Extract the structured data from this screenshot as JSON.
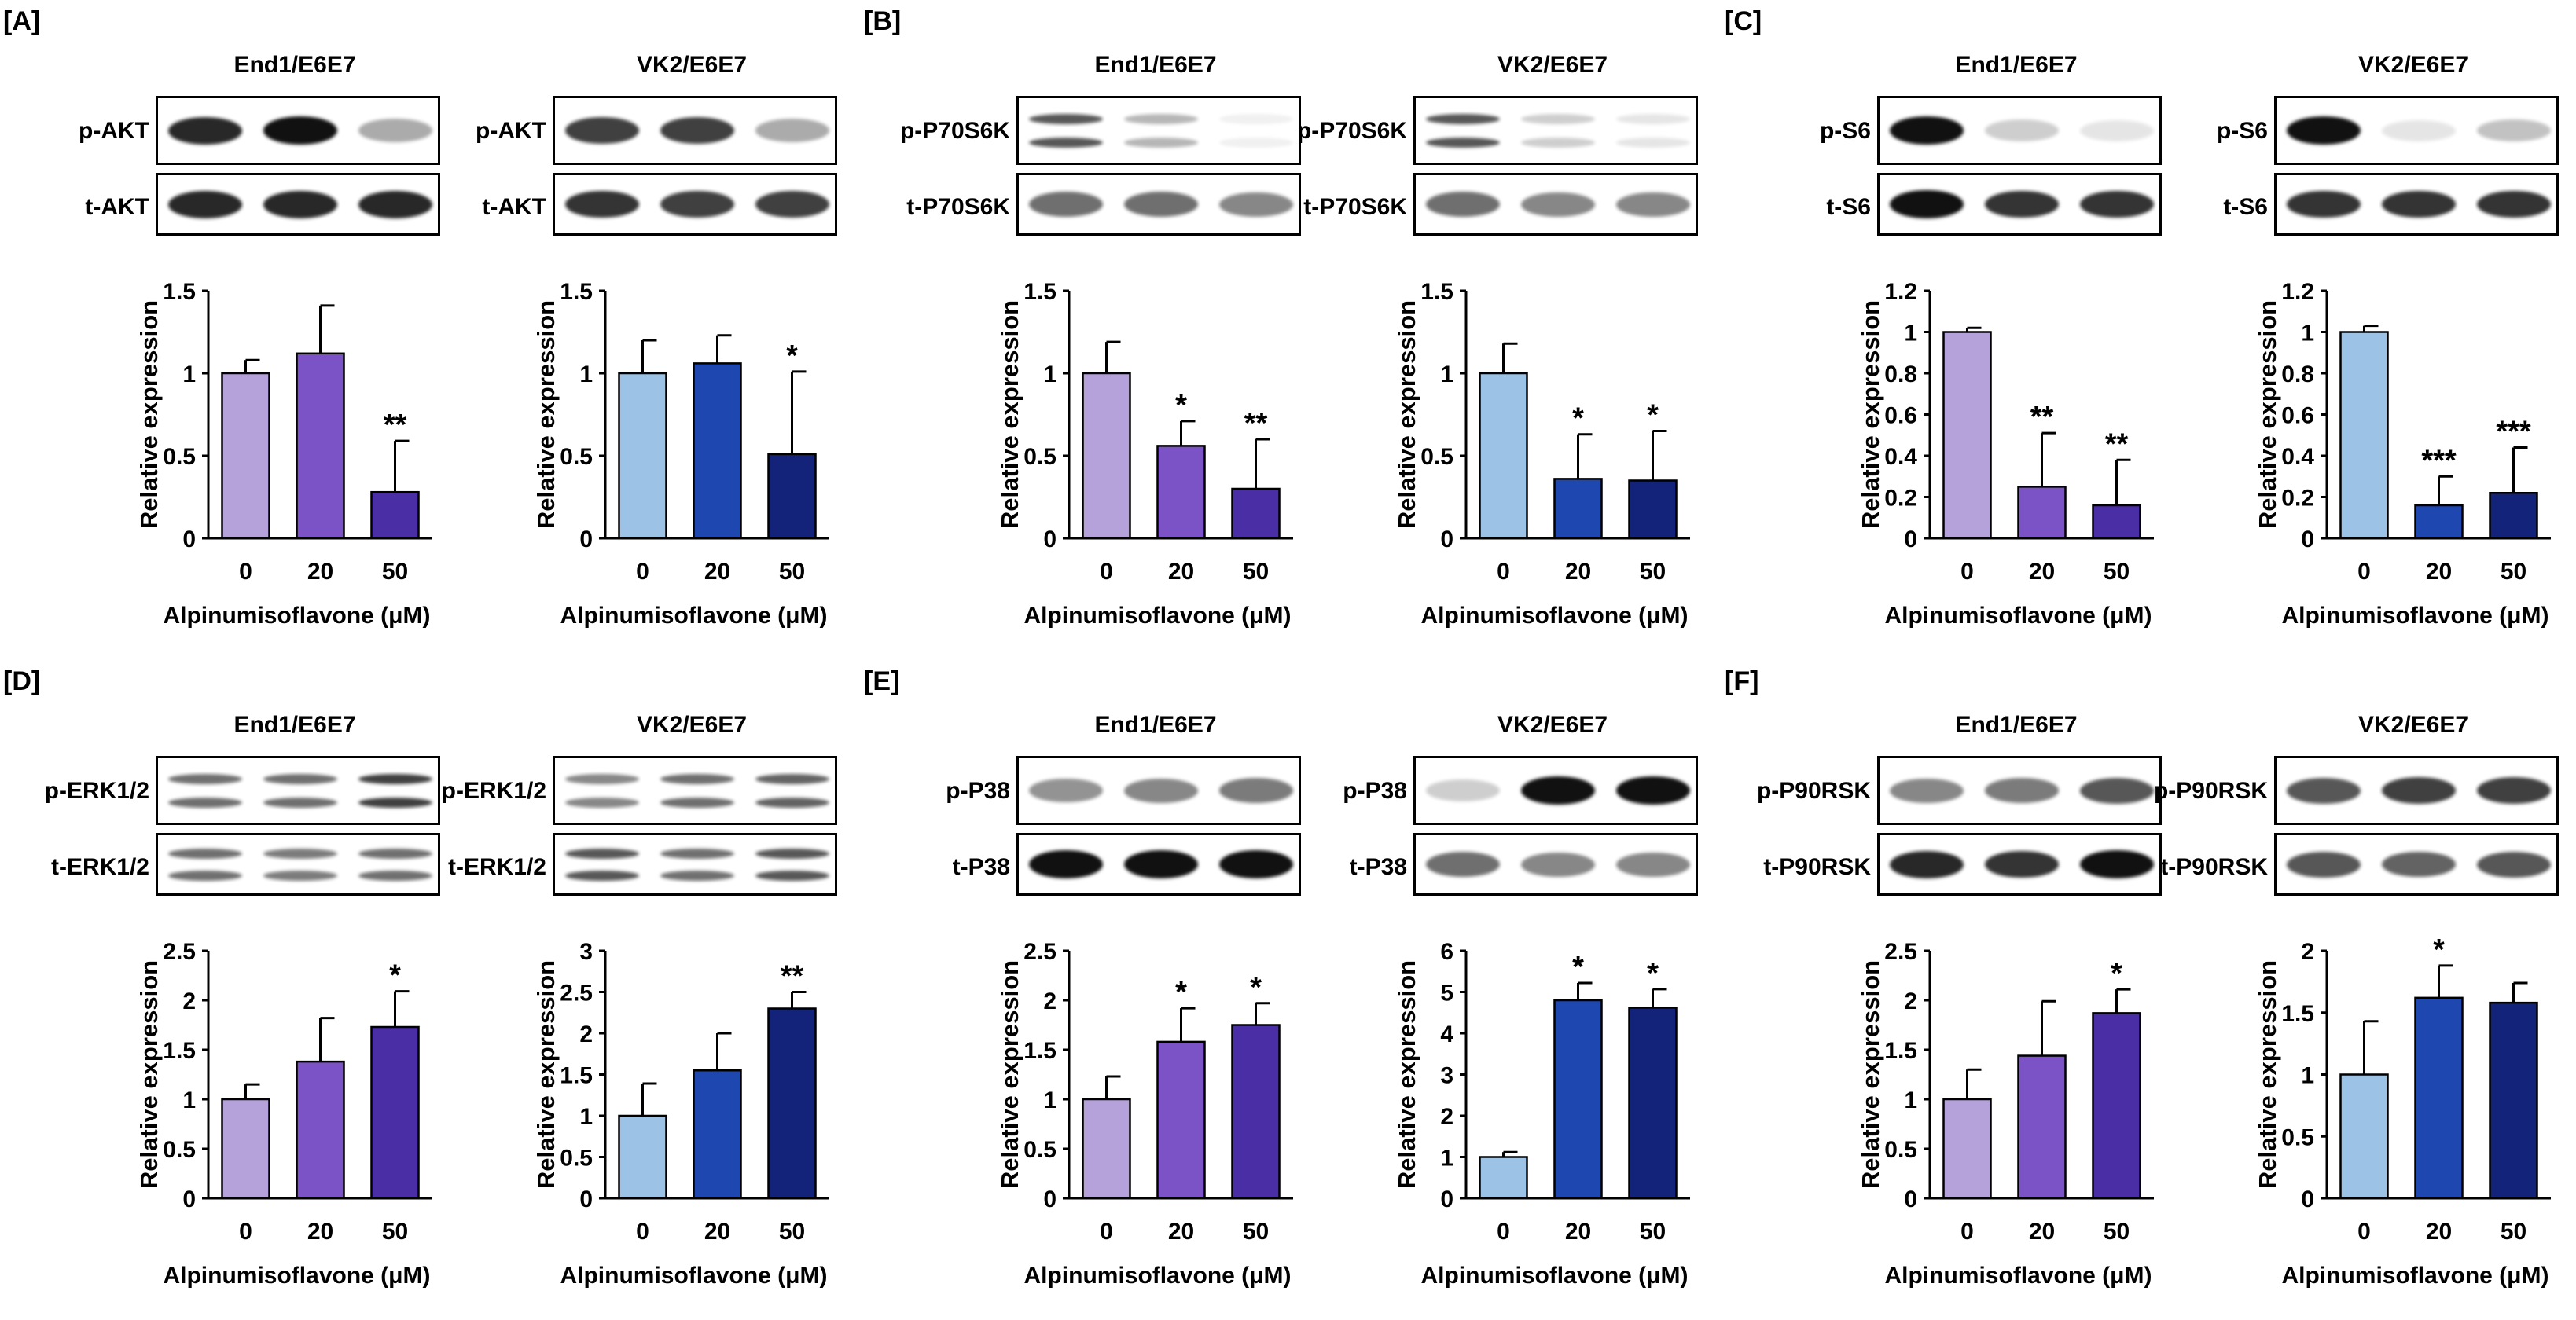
{
  "colors": {
    "end_ctrl": "#b5a2db",
    "end_20": "#7b53c6",
    "end_50": "#4a2ea6",
    "vk_ctrl": "#9cc3e6",
    "vk_20": "#1f47b0",
    "vk_50": "#13237a",
    "axis": "#000000"
  },
  "panels": [
    {
      "label": "[A]",
      "cells": [
        {
          "title": "End1/E6E7",
          "blot_top_label": "p-AKT",
          "blot_bottom_label": "t-AKT"
        },
        {
          "title": "VK2/E6E7",
          "blot_top_label": "p-AKT",
          "blot_bottom_label": "t-AKT"
        }
      ]
    },
    {
      "label": "[B]",
      "cells": [
        {
          "title": "End1/E6E7",
          "blot_top_label": "p-P70S6K",
          "blot_bottom_label": "t-P70S6K"
        },
        {
          "title": "VK2/E6E7",
          "blot_top_label": "p-P70S6K",
          "blot_bottom_label": "t-P70S6K"
        }
      ]
    },
    {
      "label": "[C]",
      "cells": [
        {
          "title": "End1/E6E7",
          "blot_top_label": "p-S6",
          "blot_bottom_label": "t-S6"
        },
        {
          "title": "VK2/E6E7",
          "blot_top_label": "p-S6",
          "blot_bottom_label": "t-S6"
        }
      ]
    },
    {
      "label": "[D]",
      "cells": [
        {
          "title": "End1/E6E7",
          "blot_top_label": "p-ERK1/2",
          "blot_bottom_label": "t-ERK1/2"
        },
        {
          "title": "VK2/E6E7",
          "blot_top_label": "p-ERK1/2",
          "blot_bottom_label": "t-ERK1/2"
        }
      ]
    },
    {
      "label": "[E]",
      "cells": [
        {
          "title": "End1/E6E7",
          "blot_top_label": "p-P38",
          "blot_bottom_label": "t-P38"
        },
        {
          "title": "VK2/E6E7",
          "blot_top_label": "p-P38",
          "blot_bottom_label": "t-P38"
        }
      ]
    },
    {
      "label": "[F]",
      "cells": [
        {
          "title": "End1/E6E7",
          "blot_top_label": "p-P90RSK",
          "blot_bottom_label": "t-P90RSK"
        },
        {
          "title": "VK2/E6E7",
          "blot_top_label": "p-P90RSK",
          "blot_bottom_label": "t-P90RSK"
        }
      ]
    }
  ],
  "chart_data": [
    {
      "panel": "[A]",
      "cell": "End1/E6E7",
      "type": "bar",
      "categories": [
        "0",
        "20",
        "50"
      ],
      "values": [
        1.0,
        1.12,
        0.28
      ],
      "errors": [
        0.08,
        0.29,
        0.31
      ],
      "significance": [
        "",
        "",
        "**"
      ],
      "ylim": [
        0,
        1.5
      ],
      "yticks": [
        "0",
        "0.5",
        "1",
        "1.5"
      ],
      "ylabel": "Relative expression",
      "xlabel": "Alpinumisoflavone (μM)"
    },
    {
      "panel": "[A]",
      "cell": "VK2/E6E7",
      "type": "bar",
      "categories": [
        "0",
        "20",
        "50"
      ],
      "values": [
        1.0,
        1.06,
        0.51
      ],
      "errors": [
        0.2,
        0.17,
        0.5
      ],
      "significance": [
        "",
        "",
        "*"
      ],
      "ylim": [
        0,
        1.5
      ],
      "yticks": [
        "0",
        "0.5",
        "1",
        "1.5"
      ],
      "ylabel": "Relative expression",
      "xlabel": "Alpinumisoflavone (μM)"
    },
    {
      "panel": "[B]",
      "cell": "End1/E6E7",
      "type": "bar",
      "categories": [
        "0",
        "20",
        "50"
      ],
      "values": [
        1.0,
        0.56,
        0.3
      ],
      "errors": [
        0.19,
        0.15,
        0.3
      ],
      "significance": [
        "",
        "*",
        "**"
      ],
      "ylim": [
        0,
        1.5
      ],
      "yticks": [
        "0",
        "0.5",
        "1",
        "1.5"
      ],
      "ylabel": "Relative expression",
      "xlabel": "Alpinumisoflavone (μM)"
    },
    {
      "panel": "[B]",
      "cell": "VK2/E6E7",
      "type": "bar",
      "categories": [
        "0",
        "20",
        "50"
      ],
      "values": [
        1.0,
        0.36,
        0.35
      ],
      "errors": [
        0.18,
        0.27,
        0.3
      ],
      "significance": [
        "",
        "*",
        "*"
      ],
      "ylim": [
        0,
        1.5
      ],
      "yticks": [
        "0",
        "0.5",
        "1",
        "1.5"
      ],
      "ylabel": "Relative expression",
      "xlabel": "Alpinumisoflavone (μM)"
    },
    {
      "panel": "[C]",
      "cell": "End1/E6E7",
      "type": "bar",
      "categories": [
        "0",
        "20",
        "50"
      ],
      "values": [
        1.0,
        0.25,
        0.16
      ],
      "errors": [
        0.02,
        0.26,
        0.22
      ],
      "significance": [
        "",
        "**",
        "**"
      ],
      "ylim": [
        0,
        1.2
      ],
      "yticks": [
        "0",
        "0.2",
        "0.4",
        "0.6",
        "0.8",
        "1",
        "1.2"
      ],
      "ylabel": "Relative expression",
      "xlabel": "Alpinumisoflavone (μM)"
    },
    {
      "panel": "[C]",
      "cell": "VK2/E6E7",
      "type": "bar",
      "categories": [
        "0",
        "20",
        "50"
      ],
      "values": [
        1.0,
        0.16,
        0.22
      ],
      "errors": [
        0.03,
        0.14,
        0.22
      ],
      "significance": [
        "",
        "***",
        "***"
      ],
      "ylim": [
        0,
        1.2
      ],
      "yticks": [
        "0",
        "0.2",
        "0.4",
        "0.6",
        "0.8",
        "1",
        "1.2"
      ],
      "ylabel": "Relative expression",
      "xlabel": "Alpinumisoflavone (μM)"
    },
    {
      "panel": "[D]",
      "cell": "End1/E6E7",
      "type": "bar",
      "categories": [
        "0",
        "20",
        "50"
      ],
      "values": [
        1.0,
        1.38,
        1.73
      ],
      "errors": [
        0.15,
        0.44,
        0.36
      ],
      "significance": [
        "",
        "",
        "*"
      ],
      "ylim": [
        0,
        2.5
      ],
      "yticks": [
        "0",
        "0.5",
        "1",
        "1.5",
        "2",
        "2.5"
      ],
      "ylabel": "Relative expression",
      "xlabel": "Alpinumisoflavone (μM)"
    },
    {
      "panel": "[D]",
      "cell": "VK2/E6E7",
      "type": "bar",
      "categories": [
        "0",
        "20",
        "50"
      ],
      "values": [
        1.0,
        1.55,
        2.3
      ],
      "errors": [
        0.39,
        0.45,
        0.2
      ],
      "significance": [
        "",
        "",
        "**"
      ],
      "ylim": [
        0,
        3
      ],
      "yticks": [
        "0",
        "0.5",
        "1",
        "1.5",
        "2",
        "2.5",
        "3"
      ],
      "ylabel": "Relative expression",
      "xlabel": "Alpinumisoflavone (μM)"
    },
    {
      "panel": "[E]",
      "cell": "End1/E6E7",
      "type": "bar",
      "categories": [
        "0",
        "20",
        "50"
      ],
      "values": [
        1.0,
        1.58,
        1.75
      ],
      "errors": [
        0.23,
        0.34,
        0.22
      ],
      "significance": [
        "",
        "*",
        "*"
      ],
      "ylim": [
        0,
        2.5
      ],
      "yticks": [
        "0",
        "0.5",
        "1",
        "1.5",
        "2",
        "2.5"
      ],
      "ylabel": "Relative expression",
      "xlabel": "Alpinumisoflavone (μM)"
    },
    {
      "panel": "[E]",
      "cell": "VK2/E6E7",
      "type": "bar",
      "categories": [
        "0",
        "20",
        "50"
      ],
      "values": [
        1.0,
        4.8,
        4.62
      ],
      "errors": [
        0.12,
        0.42,
        0.45
      ],
      "significance": [
        "",
        "*",
        "*"
      ],
      "ylim": [
        0,
        6
      ],
      "yticks": [
        "0",
        "1",
        "2",
        "3",
        "4",
        "5",
        "6"
      ],
      "ylabel": "Relative expression",
      "xlabel": "Alpinumisoflavone (μM)"
    },
    {
      "panel": "[F]",
      "cell": "End1/E6E7",
      "type": "bar",
      "categories": [
        "0",
        "20",
        "50"
      ],
      "values": [
        1.0,
        1.44,
        1.87
      ],
      "errors": [
        0.3,
        0.55,
        0.24
      ],
      "significance": [
        "",
        "",
        "*"
      ],
      "ylim": [
        0,
        2.5
      ],
      "yticks": [
        "0",
        "0.5",
        "1",
        "1.5",
        "2",
        "2.5"
      ],
      "ylabel": "Relative expression",
      "xlabel": "Alpinumisoflavone (μM)"
    },
    {
      "panel": "[F]",
      "cell": "VK2/E6E7",
      "type": "bar",
      "categories": [
        "0",
        "20",
        "50"
      ],
      "values": [
        1.0,
        1.62,
        1.58
      ],
      "errors": [
        0.43,
        0.26,
        0.16
      ],
      "significance": [
        "",
        "*",
        ""
      ],
      "ylim": [
        0,
        2
      ],
      "yticks": [
        "0",
        "0.5",
        "1",
        "1.5",
        "2"
      ],
      "ylabel": "Relative expression",
      "xlabel": "Alpinumisoflavone (μM)"
    }
  ]
}
